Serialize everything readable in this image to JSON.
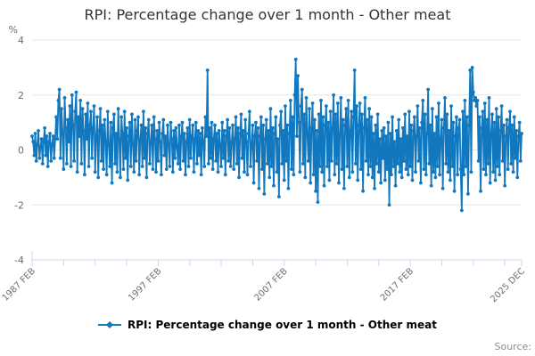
{
  "title": "RPI: Percentage change over 1 month - Other meat",
  "legend": {
    "label": "RPI: Percentage change over 1 month - Other meat"
  },
  "source_label": "Source:",
  "colors": {
    "series": "#1178bf",
    "grid": "#e6e6e6",
    "axis": "#ccd6eb",
    "tick_label": "#6e6e6e",
    "title": "#333333",
    "legend_text": "#000000",
    "source_text": "#8c8c8c"
  },
  "chart_data": {
    "type": "line",
    "title": "RPI: Percentage change over 1 month - Other meat",
    "ylabel": "%",
    "ylim": [
      -4,
      4
    ],
    "y_tick_labels": [
      "4",
      "2",
      "0",
      "-2",
      "-4"
    ],
    "y_tick_values": [
      4,
      2,
      0,
      -2,
      -4
    ],
    "x_range": [
      "1987 FEB",
      "2025 DEC"
    ],
    "frequency": "monthly",
    "minor_tick_step_months": 30,
    "x_tick_labels": [
      {
        "index": 0,
        "label": "1987 FEB"
      },
      {
        "index": 120,
        "label": "1997 FEB"
      },
      {
        "index": 240,
        "label": "2007 FEB"
      },
      {
        "index": 360,
        "label": "2017 FEB"
      },
      {
        "index": 466,
        "label": "2025 DEC"
      }
    ],
    "legend_position": "bottom",
    "grid": true,
    "series": [
      {
        "name": "RPI: Percentage change over 1 month - Other meat",
        "start": "1987 FEB",
        "end": "2025 DEC",
        "values": [
          0.5,
          0.3,
          -0.2,
          0.6,
          -0.4,
          0.2,
          0.7,
          -0.3,
          0.1,
          0.4,
          -0.5,
          0.3,
          0.8,
          -0.2,
          0.5,
          -0.6,
          0.3,
          0.6,
          -0.4,
          0.2,
          0.5,
          -0.3,
          0.4,
          1.2,
          0.4,
          1.8,
          2.2,
          -0.3,
          1.5,
          0.6,
          -0.7,
          1.9,
          0.8,
          -0.5,
          1.1,
          0.3,
          1.6,
          -0.6,
          2.0,
          0.9,
          -0.4,
          1.4,
          2.1,
          -0.8,
          1.2,
          0.5,
          1.8,
          -0.5,
          1.5,
          0.7,
          -0.9,
          1.3,
          0.4,
          1.7,
          -0.6,
          0.9,
          1.4,
          -0.3,
          0.8,
          1.6,
          -0.8,
          0.5,
          1.2,
          -1.0,
          0.7,
          1.5,
          -0.4,
          0.9,
          -0.7,
          1.1,
          0.3,
          -0.9,
          1.4,
          0.2,
          -0.6,
          1.0,
          -1.2,
          0.8,
          1.3,
          -0.5,
          0.6,
          -0.8,
          1.5,
          0.4,
          -1.0,
          1.2,
          0.6,
          -0.7,
          1.4,
          -0.3,
          0.8,
          -1.1,
          0.5,
          1.0,
          -0.6,
          1.3,
          0.2,
          -0.8,
          1.1,
          -0.4,
          0.7,
          1.2,
          -0.9,
          0.4,
          0.9,
          -0.6,
          1.4,
          -0.3,
          0.8,
          -1.0,
          0.6,
          1.1,
          -0.5,
          0.3,
          0.9,
          -0.7,
          1.2,
          0.4,
          -0.8,
          0.7,
          -0.4,
          1.0,
          0.3,
          -0.9,
          0.6,
          1.1,
          -0.2,
          0.5,
          -0.7,
          0.9,
          0.2,
          -0.6,
          1.0,
          0.4,
          -0.8,
          0.7,
          -0.3,
          0.8,
          0.1,
          -0.5,
          0.9,
          -0.7,
          0.5,
          1.0,
          -0.4,
          0.6,
          -0.9,
          0.3,
          0.8,
          -0.6,
          1.1,
          -0.3,
          0.5,
          0.9,
          -0.8,
          0.4,
          1.0,
          -0.5,
          0.7,
          -0.2,
          0.6,
          -0.9,
          0.8,
          0.3,
          -0.6,
          1.2,
          0.5,
          2.9,
          -0.5,
          0.8,
          -0.3,
          1.0,
          -0.7,
          0.4,
          0.9,
          -0.4,
          0.6,
          -0.8,
          0.7,
          0.2,
          -0.6,
          1.0,
          -0.3,
          0.7,
          -0.9,
          0.5,
          1.1,
          -0.4,
          0.8,
          -0.6,
          0.3,
          0.9,
          -0.7,
          0.4,
          1.2,
          -0.5,
          0.8,
          -1.0,
          0.6,
          1.3,
          -0.3,
          0.7,
          -0.8,
          1.1,
          0.3,
          -0.9,
          0.6,
          1.4,
          -0.6,
          0.2,
          0.9,
          -1.2,
          0.5,
          1.0,
          -0.4,
          0.8,
          -1.4,
          0.5,
          1.2,
          -0.7,
          0.9,
          -1.6,
          0.4,
          1.1,
          -0.5,
          0.7,
          -1.0,
          1.5,
          -0.6,
          0.8,
          -1.3,
          0.6,
          1.2,
          -0.8,
          0.4,
          -1.7,
          0.9,
          1.4,
          -0.5,
          0.7,
          -1.1,
          1.6,
          -0.4,
          0.9,
          -1.4,
          0.6,
          1.8,
          -0.7,
          1.2,
          -0.9,
          2.0,
          3.3,
          0.5,
          2.7,
          1.0,
          -0.8,
          1.6,
          2.2,
          -0.5,
          1.3,
          -1.0,
          1.9,
          0.6,
          -0.4,
          1.5,
          -1.2,
          0.8,
          1.7,
          -0.9,
          1.1,
          -1.5,
          0.7,
          -1.9,
          1.3,
          -0.6,
          1.8,
          -0.8,
          1.2,
          -1.3,
          0.9,
          1.6,
          -0.6,
          1.0,
          -1.1,
          1.4,
          -0.4,
          0.8,
          2.0,
          -0.9,
          1.3,
          -0.5,
          1.7,
          -1.2,
          0.6,
          1.9,
          -0.7,
          1.1,
          -1.4,
          0.9,
          1.5,
          -0.6,
          1.8,
          -1.0,
          0.7,
          1.4,
          -0.8,
          1.2,
          2.9,
          -0.5,
          1.6,
          -1.1,
          0.9,
          1.7,
          -0.7,
          1.3,
          -1.5,
          0.8,
          1.9,
          -0.4,
          1.1,
          -0.9,
          1.5,
          -0.6,
          1.2,
          -1.0,
          0.6,
          -1.4,
          0.9,
          -0.5,
          1.3,
          -0.8,
          0.4,
          -1.2,
          0.7,
          -0.3,
          0.8,
          -1.1,
          0.5,
          -0.7,
          1.0,
          -2.0,
          0.6,
          -0.9,
          1.2,
          -0.6,
          0.3,
          -1.3,
          0.7,
          -0.5,
          1.1,
          -0.8,
          0.4,
          -1.0,
          0.8,
          -0.4,
          1.3,
          -0.7,
          0.5,
          -0.9,
          1.4,
          -0.6,
          0.9,
          -1.1,
          0.7,
          1.2,
          -0.8,
          0.5,
          1.6,
          -0.4,
          0.8,
          -1.2,
          1.0,
          1.8,
          -0.7,
          1.3,
          -0.9,
          0.6,
          2.2,
          -0.5,
          0.9,
          -1.3,
          1.5,
          -0.8,
          0.6,
          -1.0,
          1.2,
          -0.6,
          1.7,
          -0.9,
          0.4,
          1.1,
          -1.4,
          0.8,
          1.9,
          -0.5,
          1.3,
          -0.8,
          0.7,
          -1.1,
          1.6,
          -0.6,
          1.0,
          -1.5,
          0.5,
          1.2,
          -0.9,
          0.8,
          1.1,
          -0.7,
          -2.2,
          1.4,
          -0.9,
          1.8,
          -0.6,
          1.2,
          -1.6,
          0.9,
          2.9,
          -0.8,
          3.0,
          2.1,
          1.8,
          1.9,
          1.6,
          1.8,
          -0.4,
          1.2,
          -1.5,
          0.8,
          1.4,
          -0.7,
          1.7,
          -0.9,
          1.1,
          -0.5,
          1.9,
          -1.2,
          0.6,
          1.3,
          -0.8,
          1.0,
          -1.1,
          1.5,
          -0.6,
          1.2,
          -0.9,
          0.7,
          1.6,
          -0.4,
          0.9,
          -1.3,
          0.5,
          1.1,
          -0.7,
          0.8,
          1.4,
          -0.5,
          0.9,
          -0.8,
          1.2,
          -0.3,
          0.7,
          -1.0,
          0.5,
          1.0,
          -0.4,
          0.6
        ]
      }
    ]
  }
}
